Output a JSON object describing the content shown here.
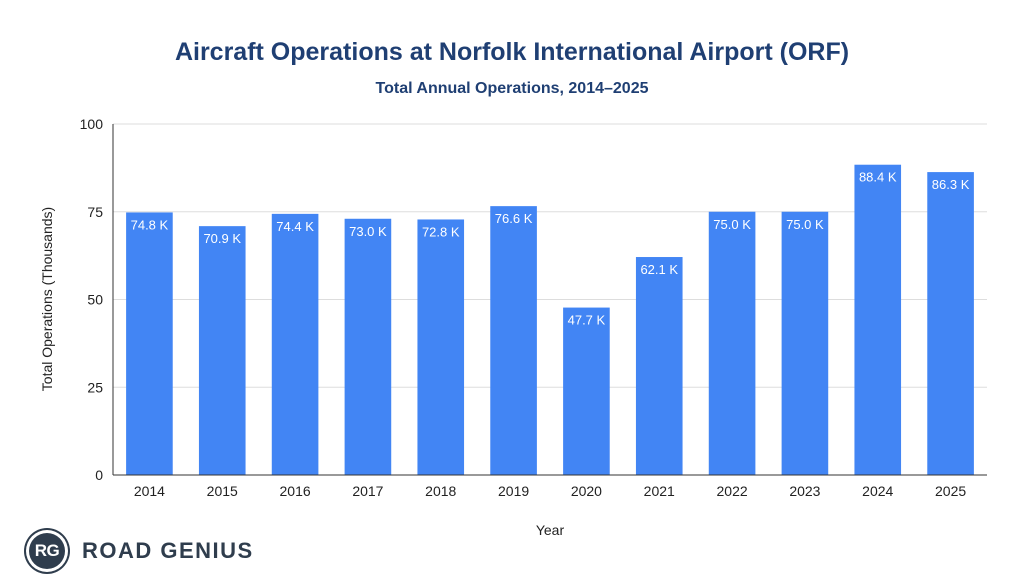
{
  "chart_data": {
    "type": "bar",
    "title": "Aircraft Operations at Norfolk International Airport (ORF)",
    "subtitle": "Total Annual Operations, 2014–2025",
    "xlabel": "Year",
    "ylabel": "Total Operations (Thousands)",
    "ylim": [
      0,
      100
    ],
    "yticks": [
      0,
      25,
      50,
      75,
      100
    ],
    "grid": true,
    "categories": [
      "2014",
      "2015",
      "2016",
      "2017",
      "2018",
      "2019",
      "2020",
      "2021",
      "2022",
      "2023",
      "2024",
      "2025"
    ],
    "values": [
      74.8,
      70.9,
      74.4,
      73.0,
      72.8,
      76.6,
      47.7,
      62.1,
      75.0,
      75.0,
      88.4,
      86.3
    ],
    "data_labels": [
      "74.8 K",
      "70.9 K",
      "74.4 K",
      "73.0 K",
      "72.8 K",
      "76.6 K",
      "47.7 K",
      "62.1 K",
      "75.0 K",
      "75.0 K",
      "88.4 K",
      "86.3 K"
    ],
    "bar_color": "#4285f4"
  },
  "brand": {
    "logo_initials": "RG",
    "name": "ROAD GENIUS"
  }
}
